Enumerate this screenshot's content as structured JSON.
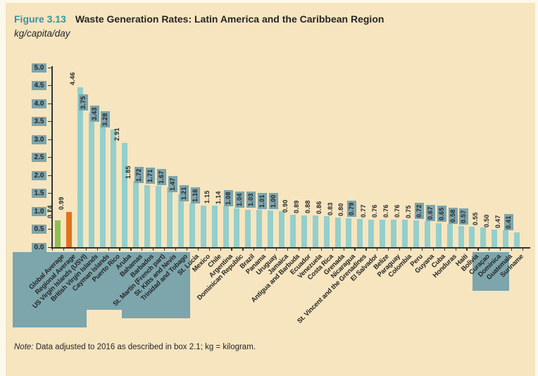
{
  "header": {
    "figure_label": "Figure 3.13",
    "title": "Waste Generation Rates: Latin America and the Caribbean Region",
    "subtitle": "kg/capita/day"
  },
  "note": {
    "label": "Note:",
    "text": " Data adjusted to 2016 as described in box 2.1; kg = kilogram."
  },
  "colors": {
    "page_bg": "#f6e5bf",
    "label_box_bg": "#7da5ac",
    "accent_teal": "#2e96a6",
    "text_dark": "#262626",
    "axis_color": "#333333"
  },
  "chart_data": {
    "type": "bar",
    "title": "Waste Generation Rates: Latin America and the Caribbean Region",
    "xlabel": "",
    "ylabel": "kg/capita/day",
    "ylim": [
      0.0,
      5.0
    ],
    "yticks": [
      0.0,
      0.5,
      1.0,
      1.5,
      2.0,
      2.5,
      3.0,
      3.5,
      4.0,
      4.5,
      5.0
    ],
    "grid": false,
    "legend": null,
    "categories": [
      "Global Average",
      "Regional Average",
      "US Virgin Islands (USVI)",
      "British Virgin Islands",
      "Cayman Islands",
      "Puerto Rico",
      "Aruba",
      "Bahamas",
      "Barbados",
      "St. Martin (French part)",
      "St. Kitts and Nevis",
      "Trinidad and Tobago",
      "St. Lucia",
      "Mexico",
      "Chile",
      "Argentina",
      "Dominican Republic",
      "Brazil",
      "Panama",
      "Uruguay",
      "Jamaica",
      "Antigua and Barbuda",
      "Ecuador",
      "Venezuela",
      "Costa Rica",
      "Grenada",
      "Nicaragua",
      "St. Vincent and the Grenadines",
      "El Salvador",
      "Belize",
      "Paraguay",
      "Colombia",
      "Peru",
      "Guyana",
      "Cuba",
      "Honduras",
      "Haiti",
      "Bolivia",
      "Curaçao",
      "Dominica",
      "Guatemala",
      "Suriname"
    ],
    "values": [
      0.74,
      0.99,
      4.46,
      3.75,
      3.43,
      3.28,
      2.91,
      1.85,
      1.72,
      1.71,
      1.67,
      1.47,
      1.21,
      1.16,
      1.15,
      1.14,
      1.08,
      1.04,
      1.03,
      1.01,
      1.0,
      0.9,
      0.89,
      0.88,
      0.86,
      0.83,
      0.8,
      0.79,
      0.77,
      0.76,
      0.76,
      0.76,
      0.75,
      0.72,
      0.67,
      0.65,
      0.58,
      0.57,
      0.55,
      0.5,
      0.47,
      0.41
    ],
    "value_label_boxed": [
      false,
      false,
      false,
      true,
      true,
      true,
      false,
      false,
      true,
      true,
      true,
      true,
      true,
      true,
      false,
      false,
      true,
      true,
      true,
      true,
      true,
      false,
      false,
      false,
      false,
      false,
      false,
      true,
      false,
      false,
      false,
      false,
      false,
      true,
      true,
      true,
      true,
      true,
      false,
      false,
      false,
      true
    ],
    "colors": {
      "default_bar": "#94cfcb",
      "global_average_bar": "#8cbf51",
      "regional_average_bar": "#e0731c"
    }
  }
}
